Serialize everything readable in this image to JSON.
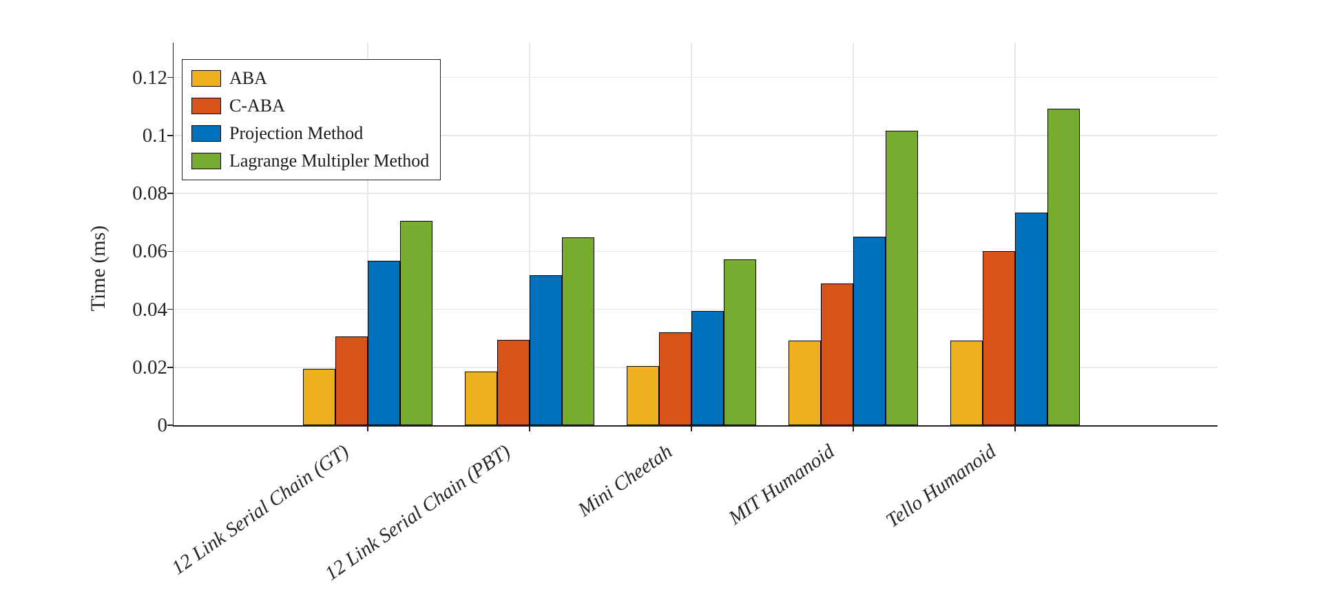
{
  "chart_data": {
    "type": "bar",
    "title": "",
    "xlabel": "",
    "ylabel": "Time (ms)",
    "categories": [
      "12 Link Serial Chain (GT)",
      "12 Link Serial Chain (PBT)",
      "Mini Cheetah",
      "MIT Humanoid",
      "Tello Humanoid"
    ],
    "series": [
      {
        "name": "ABA",
        "color": "#EDB120",
        "values": [
          0.0195,
          0.0185,
          0.0205,
          0.0293,
          0.0292
        ]
      },
      {
        "name": "C-ABA",
        "color": "#D95319",
        "values": [
          0.0307,
          0.0295,
          0.032,
          0.0488,
          0.0601
        ]
      },
      {
        "name": "Projection Method",
        "color": "#0072BD",
        "values": [
          0.0568,
          0.0517,
          0.0393,
          0.0651,
          0.0733
        ]
      },
      {
        "name": "Lagrange Multipler Method",
        "color": "#77AC30",
        "values": [
          0.0706,
          0.0649,
          0.0571,
          0.1017,
          0.1092
        ]
      }
    ],
    "yticks": [
      0,
      0.02,
      0.04,
      0.06,
      0.08,
      0.1,
      0.12
    ],
    "ytick_labels": [
      "0",
      "0.02",
      "0.04",
      "0.06",
      "0.08",
      "0.1",
      "0.12"
    ],
    "ylim": [
      0,
      0.132
    ],
    "grid": true,
    "legend_position": "top-left",
    "bar_edge_color": "#000000",
    "grid_color": "#e7e7e7",
    "axis_color": "#1f1f1f",
    "text_color": "#262626",
    "background_color": "#ffffff"
  }
}
